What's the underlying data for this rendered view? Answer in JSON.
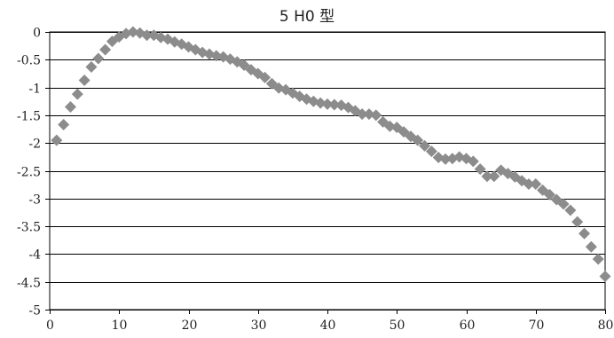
{
  "chart_data": {
    "type": "scatter",
    "title": "5 H0 型",
    "xlabel": "",
    "ylabel": "",
    "xlim": [
      0,
      80
    ],
    "ylim": [
      -5,
      0
    ],
    "x_ticks": [
      "0",
      "10",
      "20",
      "30",
      "40",
      "50",
      "60",
      "70",
      "80"
    ],
    "y_ticks": [
      "0",
      "-0.5",
      "-1",
      "-1.5",
      "-2",
      "-2.5",
      "-3",
      "-3.5",
      "-4",
      "-4.5",
      "-5"
    ],
    "grid": "horizontal",
    "legend": "none",
    "marker": "diamond",
    "marker_color": "#8c8c8c",
    "series": [
      {
        "points": [
          [
            1,
            -1.95
          ],
          [
            2,
            -1.67
          ],
          [
            3,
            -1.35
          ],
          [
            4,
            -1.12
          ],
          [
            5,
            -0.87
          ],
          [
            6,
            -0.63
          ],
          [
            7,
            -0.48
          ],
          [
            8,
            -0.32
          ],
          [
            9,
            -0.17
          ],
          [
            10,
            -0.09
          ],
          [
            11,
            -0.03
          ],
          [
            12,
            0.0
          ],
          [
            13,
            -0.02
          ],
          [
            14,
            -0.06
          ],
          [
            15,
            -0.06
          ],
          [
            16,
            -0.1
          ],
          [
            17,
            -0.13
          ],
          [
            18,
            -0.18
          ],
          [
            19,
            -0.22
          ],
          [
            20,
            -0.27
          ],
          [
            21,
            -0.32
          ],
          [
            22,
            -0.37
          ],
          [
            23,
            -0.4
          ],
          [
            24,
            -0.43
          ],
          [
            25,
            -0.45
          ],
          [
            26,
            -0.49
          ],
          [
            27,
            -0.54
          ],
          [
            28,
            -0.6
          ],
          [
            29,
            -0.68
          ],
          [
            30,
            -0.75
          ],
          [
            31,
            -0.82
          ],
          [
            32,
            -0.93
          ],
          [
            33,
            -1.01
          ],
          [
            34,
            -1.04
          ],
          [
            35,
            -1.1
          ],
          [
            36,
            -1.16
          ],
          [
            37,
            -1.21
          ],
          [
            38,
            -1.25
          ],
          [
            39,
            -1.28
          ],
          [
            40,
            -1.3
          ],
          [
            41,
            -1.31
          ],
          [
            42,
            -1.32
          ],
          [
            43,
            -1.36
          ],
          [
            44,
            -1.42
          ],
          [
            45,
            -1.48
          ],
          [
            46,
            -1.48
          ],
          [
            47,
            -1.5
          ],
          [
            48,
            -1.62
          ],
          [
            49,
            -1.7
          ],
          [
            50,
            -1.72
          ],
          [
            51,
            -1.8
          ],
          [
            52,
            -1.88
          ],
          [
            53,
            -1.95
          ],
          [
            54,
            -2.05
          ],
          [
            55,
            -2.15
          ],
          [
            56,
            -2.26
          ],
          [
            57,
            -2.29
          ],
          [
            58,
            -2.28
          ],
          [
            59,
            -2.25
          ],
          [
            60,
            -2.28
          ],
          [
            61,
            -2.33
          ],
          [
            62,
            -2.47
          ],
          [
            63,
            -2.6
          ],
          [
            64,
            -2.6
          ],
          [
            65,
            -2.49
          ],
          [
            66,
            -2.55
          ],
          [
            67,
            -2.61
          ],
          [
            68,
            -2.68
          ],
          [
            69,
            -2.74
          ],
          [
            70,
            -2.74
          ],
          [
            71,
            -2.85
          ],
          [
            72,
            -2.93
          ],
          [
            73,
            -3.02
          ],
          [
            74,
            -3.1
          ],
          [
            75,
            -3.21
          ],
          [
            76,
            -3.42
          ],
          [
            77,
            -3.63
          ],
          [
            78,
            -3.87
          ],
          [
            79,
            -4.09
          ],
          [
            80,
            -4.4
          ]
        ]
      }
    ]
  }
}
